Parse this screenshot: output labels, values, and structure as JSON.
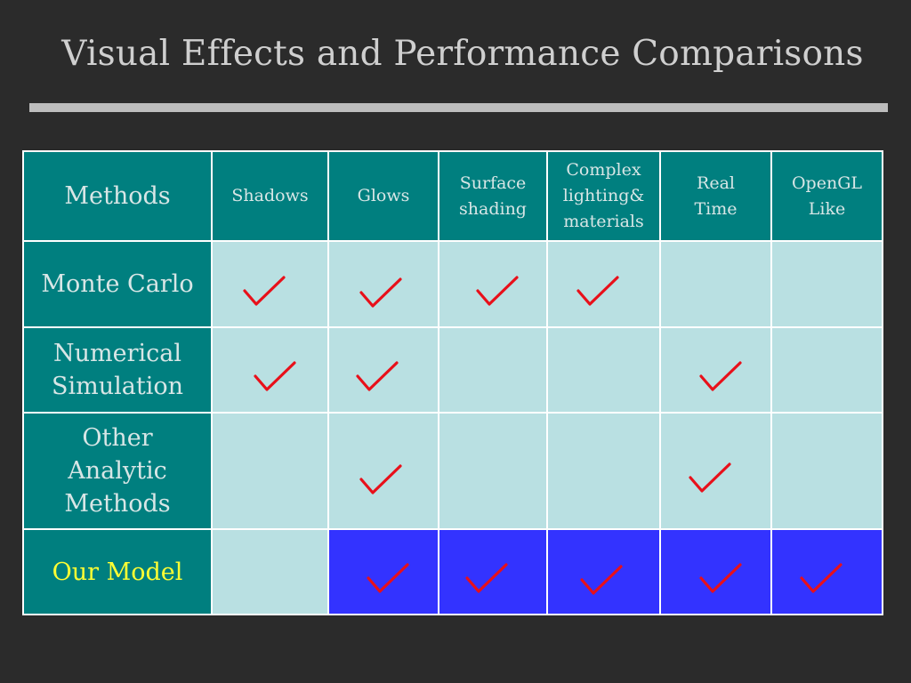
{
  "title": "Visual Effects and Performance Comparisons",
  "headers": {
    "methods": "Methods",
    "shadows": "Shadows",
    "glows": "Glows",
    "surface_1": "Surface",
    "surface_2": "shading",
    "complex_1": "Complex",
    "complex_2": "lighting&",
    "complex_3": "materials",
    "realtime_1": "Real",
    "realtime_2": "Time",
    "opengl_1": "OpenGL",
    "opengl_2": "Like"
  },
  "rows": {
    "monte_carlo": "Monte Carlo",
    "numerical_1": "Numerical",
    "numerical_2": "Simulation",
    "other_1": "Other",
    "other_2": "Analytic",
    "other_3": "Methods",
    "our_model": "Our Model"
  },
  "features": [
    {
      "monte_carlo": true,
      "numerical_simulation": true,
      "other_analytic": false,
      "our_model": false
    },
    {
      "monte_carlo": true,
      "numerical_simulation": true,
      "other_analytic": true,
      "our_model": true
    },
    {
      "monte_carlo": true,
      "numerical_simulation": false,
      "other_analytic": false,
      "our_model": true
    },
    {
      "monte_carlo": true,
      "numerical_simulation": false,
      "other_analytic": false,
      "our_model": true
    },
    {
      "monte_carlo": false,
      "numerical_simulation": true,
      "other_analytic": true,
      "our_model": true
    },
    {
      "monte_carlo": false,
      "numerical_simulation": false,
      "other_analytic": false,
      "our_model": true
    }
  ],
  "colors": {
    "background": "#2b2b2b",
    "title_text": "#cfcfcf",
    "rule": "#bdbdbd",
    "header_fill": "#007f7f",
    "cell_fill": "#b9e0e2",
    "our_model_fill": "#3333ff",
    "our_model_label": "#ffff33",
    "checkmark": "#e8101a",
    "grid_lines": "#ffffff"
  },
  "icons": {
    "check": "checkmark-icon"
  }
}
